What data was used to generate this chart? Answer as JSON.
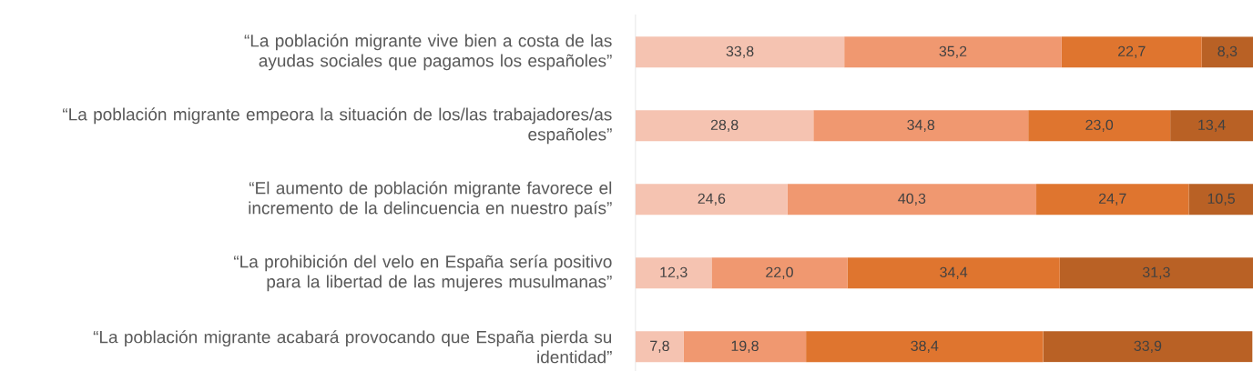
{
  "chart_data": {
    "type": "bar",
    "orientation": "horizontal",
    "stacked": true,
    "tick_labels": "y",
    "xlim": [
      0,
      100
    ],
    "categories": [
      "“La población migrante vive bien a costa de las ayudas sociales que pagamos los españoles”",
      "“La población migrante empeora la situación de los/las trabajadores/as españoles”",
      "“El aumento de población migrante favorece el incremento de la delincuencia en nuestro país”",
      "“La prohibición del velo en España sería positivo para la libertad de las mujeres musulmanas”",
      "“La población migrante acabará provocando que España pierda su identidad”"
    ],
    "series": [
      {
        "color": "#f5c3b1",
        "values": [
          33.8,
          28.8,
          24.6,
          12.3,
          7.8
        ],
        "value_labels": [
          "33,8",
          "28,8",
          "24,6",
          "12,3",
          "7,8"
        ]
      },
      {
        "color": "#f09870",
        "values": [
          35.2,
          34.8,
          40.3,
          22.0,
          19.8
        ],
        "value_labels": [
          "35,2",
          "34,8",
          "40,3",
          "22,0",
          "19,8"
        ]
      },
      {
        "color": "#df752f",
        "values": [
          22.7,
          23.0,
          24.7,
          34.4,
          38.4
        ],
        "value_labels": [
          "22,7",
          "23,0",
          "24,7",
          "34,4",
          "38,4"
        ]
      },
      {
        "color": "#b96125",
        "values": [
          8.3,
          13.4,
          10.5,
          31.3,
          33.9
        ],
        "value_labels": [
          "8,3",
          "13,4",
          "10,5",
          "31,3",
          "33,9"
        ]
      }
    ]
  }
}
